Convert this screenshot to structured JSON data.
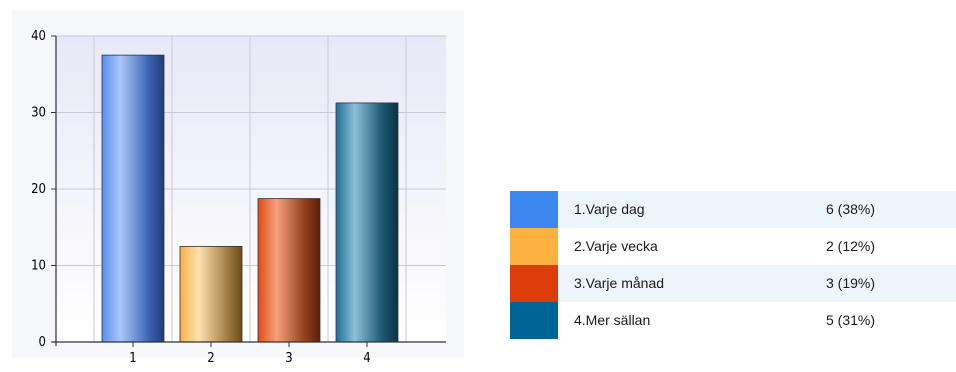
{
  "chart_data": {
    "type": "bar",
    "categories": [
      "1",
      "2",
      "3",
      "4"
    ],
    "values": [
      37.5,
      12.5,
      18.75,
      31.25
    ],
    "yticks": [
      0,
      10,
      20,
      30,
      40
    ],
    "ylim": [
      0,
      40
    ],
    "grid": true,
    "title": "",
    "xlabel": "",
    "ylabel": "",
    "colors": [
      "#4a86e8",
      "#f6b04a",
      "#e04b18",
      "#1f6e92"
    ]
  },
  "legend": {
    "rows": [
      {
        "label": "1.Varje dag",
        "value": "6 (38%)",
        "color": "#3d87f0"
      },
      {
        "label": "2.Varje vecka",
        "value": "2 (12%)",
        "color": "#fbb040"
      },
      {
        "label": "3.Varje månad",
        "value": "3 (19%)",
        "color": "#dd3d0b"
      },
      {
        "label": "4.Mer sällan",
        "value": "5 (31%)",
        "color": "#006497"
      }
    ]
  }
}
